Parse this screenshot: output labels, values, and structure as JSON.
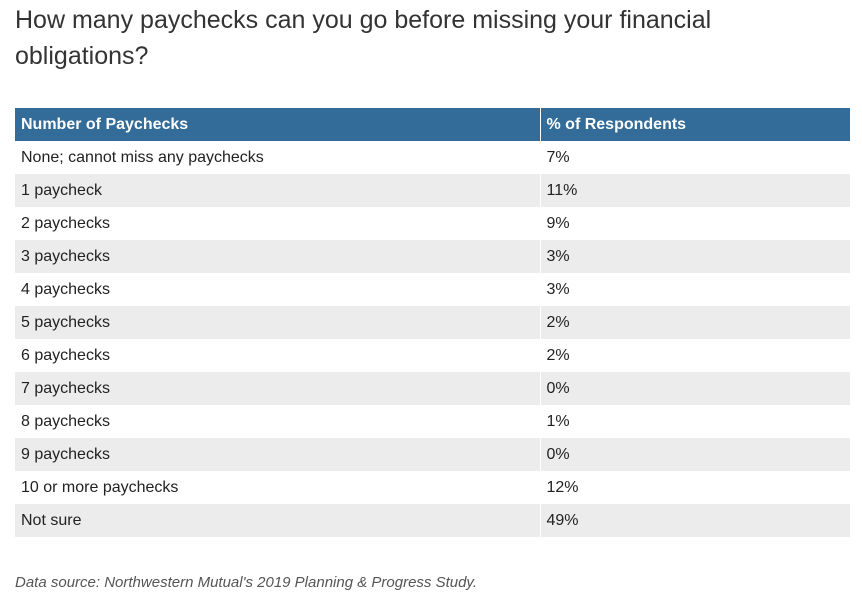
{
  "chart_data": {
    "type": "table",
    "title": "How many paychecks can you go before missing your financial obligations?",
    "columns": [
      "Number of Paychecks",
      "% of Respondents"
    ],
    "rows": [
      [
        "None; cannot miss any paychecks",
        "7%"
      ],
      [
        "1 paycheck",
        "11%"
      ],
      [
        "2 paychecks",
        "9%"
      ],
      [
        "3 paychecks",
        "3%"
      ],
      [
        "4 paychecks",
        "3%"
      ],
      [
        "5 paychecks",
        "2%"
      ],
      [
        "6 paychecks",
        "2%"
      ],
      [
        "7 paychecks",
        "0%"
      ],
      [
        "8 paychecks",
        "1%"
      ],
      [
        "9 paychecks",
        "0%"
      ],
      [
        "10 or more paychecks",
        "12%"
      ],
      [
        "Not sure",
        "49%"
      ]
    ],
    "source": "Data source: Northwestern Mutual's 2019 Planning & Progress Study.",
    "colors": {
      "header_bg": "#336b99",
      "header_text": "#ffffff",
      "stripe": "#ececec"
    }
  }
}
